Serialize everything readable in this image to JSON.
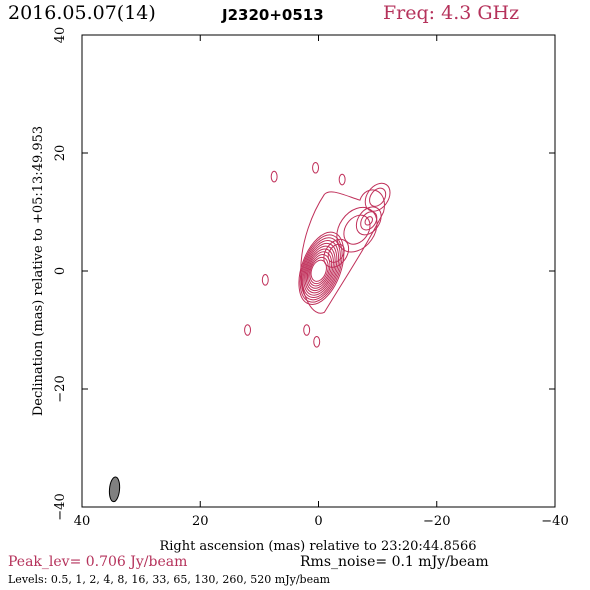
{
  "header": {
    "date": "2016.05.07(14)",
    "source": "J2320+0513",
    "freq": "Freq: 4.3 GHz"
  },
  "colors": {
    "contour": "#c0305a",
    "accent": "#b5325b",
    "beam": "#808080"
  },
  "chart_data": {
    "type": "contour",
    "xlabel": "Right ascension (mas) relative to 23:20:44.8566",
    "ylabel": "Declination (mas) relative to +05:13:49.953",
    "xlim": [
      40,
      -40
    ],
    "ylim": [
      -40,
      40
    ],
    "xticks": [
      40,
      20,
      0,
      -20,
      -40
    ],
    "yticks": [
      -40,
      -20,
      0,
      20,
      40
    ],
    "xtick_labels": [
      "40",
      "20",
      "0",
      "−20",
      "−40"
    ],
    "ytick_labels": [
      "−40",
      "−20",
      "0",
      "20",
      "40"
    ],
    "peak": 0.706,
    "rms_noise": 0.1,
    "levels": [
      0.5,
      1,
      2,
      4,
      8,
      16,
      33,
      65,
      130,
      260,
      520
    ],
    "core": {
      "x": 0,
      "y": 0
    },
    "jet_knots": [
      {
        "x": -3,
        "y": 3
      },
      {
        "x": -6.5,
        "y": 7
      },
      {
        "x": -8.5,
        "y": 8.5
      },
      {
        "x": -10,
        "y": 12.5
      }
    ],
    "beam": {
      "x": 34.5,
      "y": -37,
      "major": 4.2,
      "minor": 1.7,
      "pa": 5
    }
  },
  "footer": {
    "peak_label": "Peak_lev=  0.706 Jy/beam",
    "rms_label": "Rms_noise=  0.1 mJy/beam",
    "levels_label": "Levels: 0.5,   1,   2,   4,   8,  16,  33,  65, 130, 260, 520 mJy/beam"
  }
}
